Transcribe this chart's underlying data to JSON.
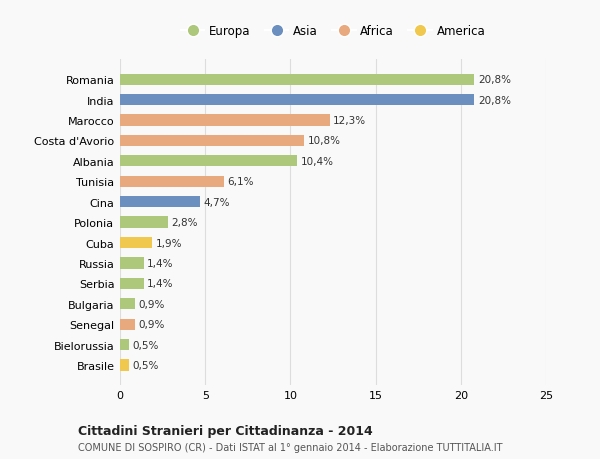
{
  "countries": [
    "Romania",
    "India",
    "Marocco",
    "Costa d'Avorio",
    "Albania",
    "Tunisia",
    "Cina",
    "Polonia",
    "Cuba",
    "Russia",
    "Serbia",
    "Bulgaria",
    "Senegal",
    "Bielorussia",
    "Brasile"
  ],
  "values": [
    20.8,
    20.8,
    12.3,
    10.8,
    10.4,
    6.1,
    4.7,
    2.8,
    1.9,
    1.4,
    1.4,
    0.9,
    0.9,
    0.5,
    0.5
  ],
  "labels": [
    "20,8%",
    "20,8%",
    "12,3%",
    "10,8%",
    "10,4%",
    "6,1%",
    "4,7%",
    "2,8%",
    "1,9%",
    "1,4%",
    "1,4%",
    "0,9%",
    "0,9%",
    "0,5%",
    "0,5%"
  ],
  "continents": [
    "Europa",
    "Asia",
    "Africa",
    "Africa",
    "Europa",
    "Africa",
    "Asia",
    "Europa",
    "America",
    "Europa",
    "Europa",
    "Europa",
    "Africa",
    "Europa",
    "America"
  ],
  "colors": {
    "Europa": "#adc87a",
    "Asia": "#6b8fbf",
    "Africa": "#e8a97e",
    "America": "#f0c84e"
  },
  "legend_order": [
    "Europa",
    "Asia",
    "Africa",
    "America"
  ],
  "title": "Cittadini Stranieri per Cittadinanza - 2014",
  "subtitle": "COMUNE DI SOSPIRO (CR) - Dati ISTAT al 1° gennaio 2014 - Elaborazione TUTTITALIA.IT",
  "xlim": [
    0,
    25
  ],
  "xticks": [
    0,
    5,
    10,
    15,
    20,
    25
  ],
  "bg_color": "#f9f9f9",
  "grid_color": "#dddddd"
}
